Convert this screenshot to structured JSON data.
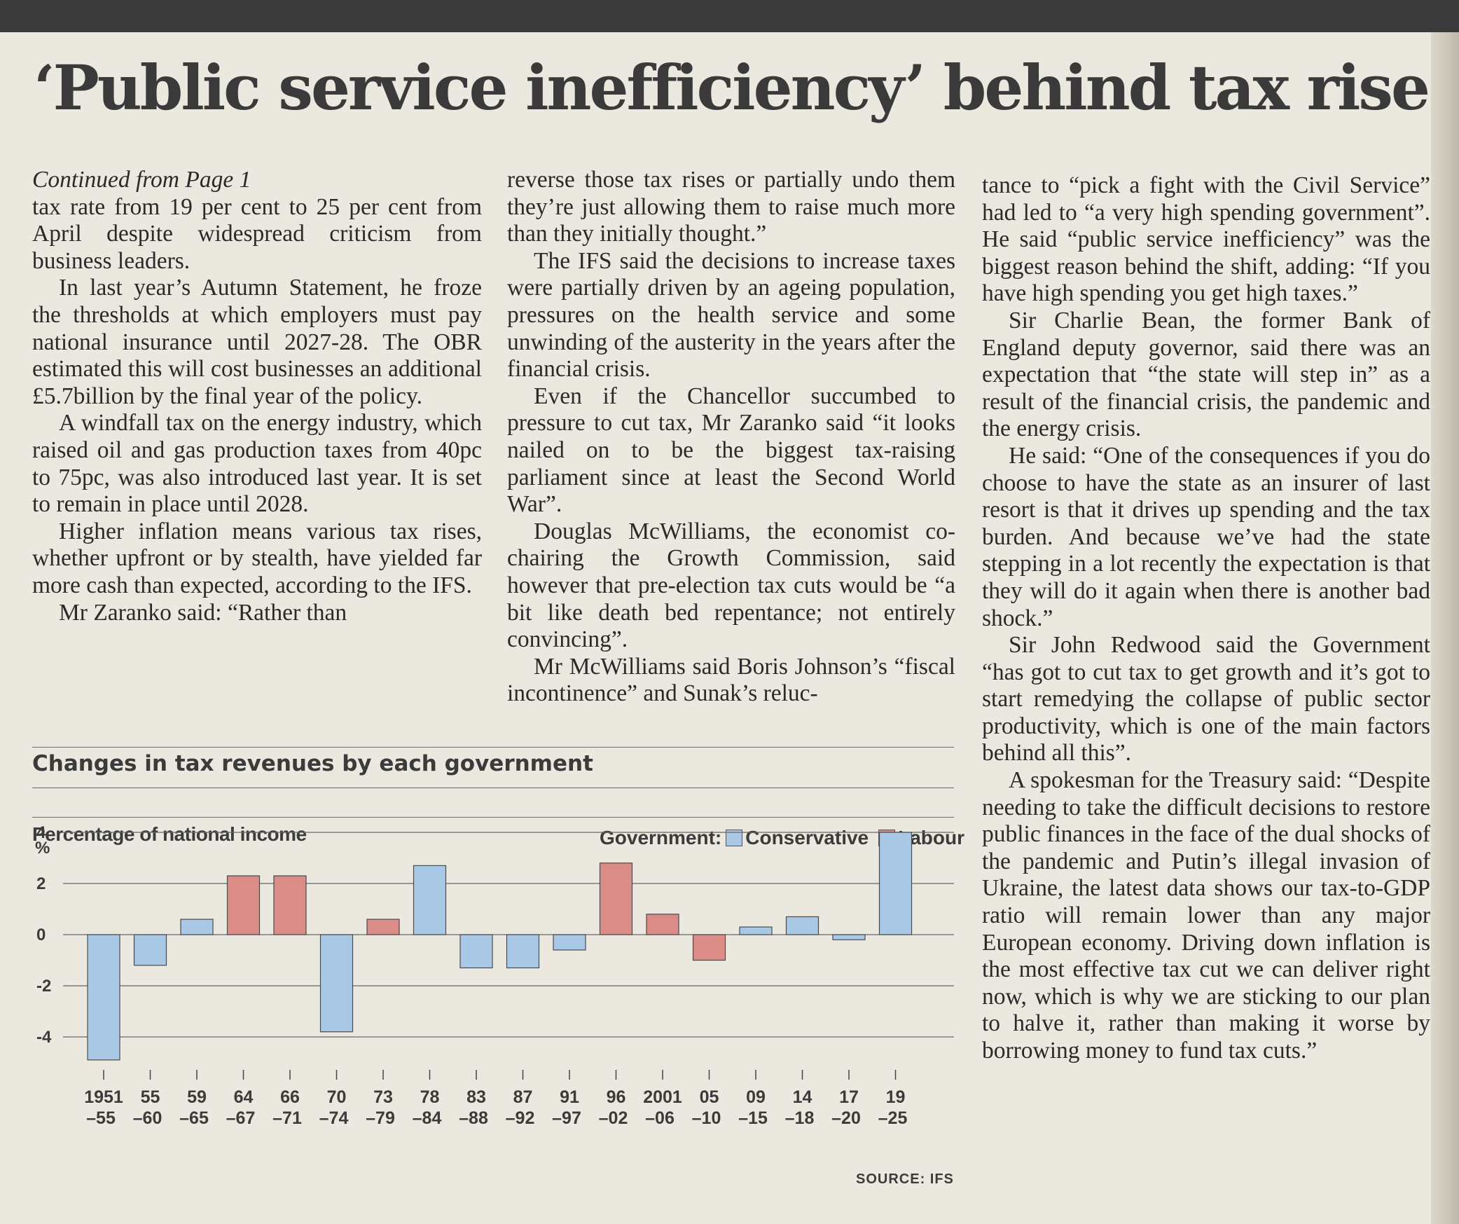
{
  "headline": "‘Public service inefficiency’ behind tax rise",
  "article": {
    "col1": {
      "continued": "Continued from Page 1",
      "paragraphs": [
        "tax rate from 19 per cent to 25 per cent from April despite widespread criticism from business leaders.",
        "In last year’s Autumn Statement, he froze the thresholds at which employers must pay national insurance until 2027-28. The OBR estimated this will cost businesses an additional £5.7billion by the final year of the policy.",
        "A windfall tax on the energy industry, which raised oil and gas production taxes from 40pc to 75pc, was also introduced last year. It is set to remain in place until 2028.",
        "Higher inflation means various tax rises, whether upfront or by stealth, have yielded far more cash than expected, according to the IFS.",
        "Mr Zaranko said: “Rather than"
      ]
    },
    "col2": {
      "paragraphs": [
        "reverse those tax rises or partially undo them they’re just allowing them to raise much more than they initially thought.”",
        "The IFS said the decisions to increase taxes were partially driven by an ageing population, pressures on the health service and some unwinding of the austerity in the years after the financial crisis.",
        "Even if the Chancellor succumbed to pressure to cut tax, Mr Zaranko said “it looks nailed on to be the biggest tax-raising parliament since at least the Second World War”.",
        "Douglas McWilliams, the economist co-chairing the Growth Commission, said however that pre-election tax cuts would be “a bit like death bed repentance; not entirely convincing”.",
        "Mr McWilliams said Boris Johnson’s “fiscal incontinence” and Sunak’s reluc-"
      ]
    },
    "col3": {
      "paragraphs": [
        "tance to “pick a fight with the Civil Service” had led to “a very high spending government”. He said “public service inefficiency” was the biggest reason behind the shift, adding: “If you have high spending you get high taxes.”",
        "Sir Charlie Bean, the former Bank of England deputy governor, said there was an expectation that “the state will step in” as a result of the financial crisis, the pandemic and the energy crisis.",
        "He said: “One of the consequences if you do choose to have the state as an insurer of last resort is that it drives up spending and the tax burden. And because we’ve had the state stepping in a lot recently the expectation is that they will do it again when there is another bad shock.”",
        "Sir John Redwood said the Government “has got to cut tax to get growth and it’s got to start remedying the collapse of public sector productivity, which is one of the main factors behind all this”.",
        "A spokesman for the Treasury said: “Despite needing to take the difficult decisions to restore public finances in the face of the dual shocks of the pandemic and Putin’s illegal invasion of Ukraine, the latest data shows our tax-to-GDP ratio will remain lower than any major European economy. Driving down inflation is the most effective tax cut we can deliver right now, which is why we are sticking to our plan to halve it, rather than making it worse by borrowing money to fund tax cuts.”"
      ]
    }
  },
  "chart_data": {
    "type": "bar",
    "title": "Changes in tax revenues by each government",
    "ylabel": "Percentage of national income",
    "y_unit": "%",
    "legend_title": "Government:",
    "legend": [
      {
        "name": "Conservative",
        "color": "#a8c8e6"
      },
      {
        "name": "Labour",
        "color": "#dc8c86"
      }
    ],
    "source": "SOURCE: IFS",
    "ylim": [
      -5,
      4
    ],
    "yticks": [
      "4",
      "2",
      "0",
      "-2",
      "-4"
    ],
    "categories": [
      [
        "1951",
        "–55"
      ],
      [
        "55",
        "–60"
      ],
      [
        "59",
        "–65"
      ],
      [
        "64",
        "–67"
      ],
      [
        "66",
        "–71"
      ],
      [
        "70",
        "–74"
      ],
      [
        "73",
        "–79"
      ],
      [
        "78",
        "–84"
      ],
      [
        "83",
        "–88"
      ],
      [
        "87",
        "–92"
      ],
      [
        "91",
        "–97"
      ],
      [
        "96",
        "–02"
      ],
      [
        "2001",
        "–06"
      ],
      [
        "05",
        "–10"
      ],
      [
        "09",
        "–15"
      ],
      [
        "14",
        "–18"
      ],
      [
        "17",
        "–20"
      ],
      [
        "19",
        "–25"
      ]
    ],
    "values": [
      -4.9,
      -1.2,
      0.6,
      2.3,
      2.3,
      -3.8,
      0.6,
      2.7,
      -1.3,
      -1.3,
      -0.6,
      2.8,
      0.8,
      -1.0,
      0.3,
      0.7,
      -0.2,
      4.0
    ],
    "parties": [
      "Conservative",
      "Conservative",
      "Conservative",
      "Labour",
      "Labour",
      "Conservative",
      "Labour",
      "Conservative",
      "Conservative",
      "Conservative",
      "Conservative",
      "Labour",
      "Labour",
      "Labour",
      "Conservative",
      "Conservative",
      "Conservative",
      "Conservative"
    ],
    "grid": true
  }
}
